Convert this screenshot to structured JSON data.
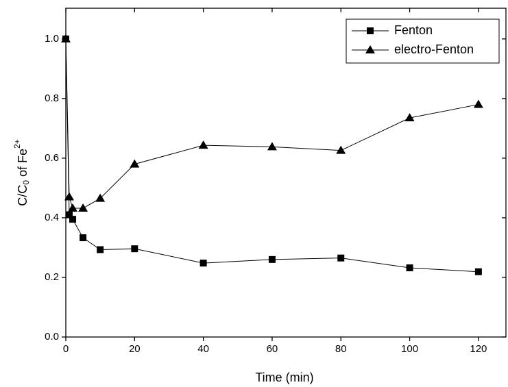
{
  "chart_data": {
    "type": "line",
    "x_label": "Time (min)",
    "y_label": [
      "C/C",
      "0",
      " of Fe",
      "2+"
    ],
    "x": [
      0,
      1,
      2,
      5,
      10,
      20,
      40,
      60,
      80,
      100,
      120
    ],
    "series": [
      {
        "name": "Fenton",
        "color": "#000000",
        "marker": "square",
        "values": [
          1.0,
          0.41,
          0.395,
          0.333,
          0.293,
          0.296,
          0.248,
          0.26,
          0.265,
          0.232,
          0.219
        ]
      },
      {
        "name": "electro-Fenton",
        "color": "#000000",
        "marker": "triangle",
        "values": [
          1.0,
          0.47,
          0.432,
          0.432,
          0.465,
          0.58,
          0.643,
          0.638,
          0.626,
          0.735,
          0.78
        ]
      }
    ],
    "xlim": [
      0,
      128
    ],
    "ylim": [
      0,
      1.103
    ],
    "xticks": [
      0,
      20,
      40,
      60,
      80,
      100,
      120
    ],
    "yticks": [
      {
        "value": 0,
        "label": "0.0"
      },
      0.2,
      0.4,
      0.6,
      0.8,
      {
        "value": 1,
        "label": "1.0"
      }
    ],
    "legend": "top-right"
  }
}
